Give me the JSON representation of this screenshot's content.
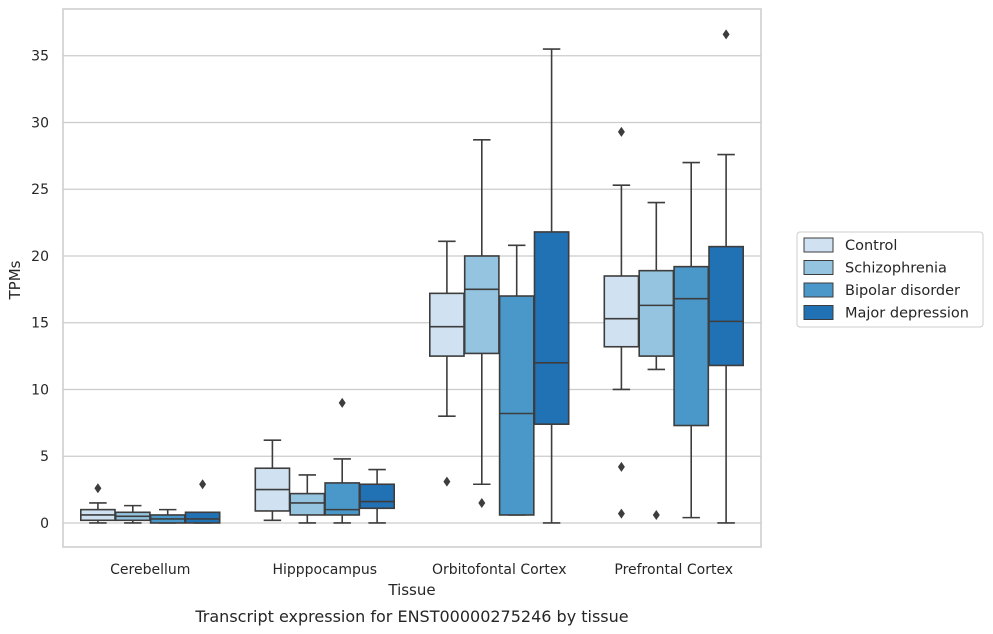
{
  "chart_data": {
    "type": "box",
    "caption": "Transcript expression for ENST00000275246 by tissue",
    "xlabel": "Tissue",
    "ylabel": "TPMs",
    "ylim": [
      -1.8,
      38.5
    ],
    "yticks": [
      0,
      5,
      10,
      15,
      20,
      25,
      30,
      35
    ],
    "grid": "horizontal",
    "legend_position": "right",
    "categories": [
      "Cerebellum",
      "Hipppocampus",
      "Orbitofontal Cortex",
      "Prefrontal Cortex"
    ],
    "series": [
      {
        "name": "Control",
        "color": "#d0e1f2",
        "boxes": [
          {
            "whislo": 0.0,
            "q1": 0.2,
            "med": 0.6,
            "q3": 1.0,
            "whishi": 1.5,
            "fliers": [
              2.6
            ]
          },
          {
            "whislo": 0.2,
            "q1": 0.9,
            "med": 2.5,
            "q3": 4.1,
            "whishi": 6.2,
            "fliers": []
          },
          {
            "whislo": 8.0,
            "q1": 12.5,
            "med": 14.7,
            "q3": 17.2,
            "whishi": 21.1,
            "fliers": [
              3.1
            ]
          },
          {
            "whislo": 10.0,
            "q1": 13.2,
            "med": 15.3,
            "q3": 18.5,
            "whishi": 25.3,
            "fliers": [
              29.3,
              4.2,
              0.7
            ]
          }
        ]
      },
      {
        "name": "Schizophrenia",
        "color": "#94c4df",
        "boxes": [
          {
            "whislo": 0.0,
            "q1": 0.2,
            "med": 0.5,
            "q3": 0.8,
            "whishi": 1.3,
            "fliers": []
          },
          {
            "whislo": 0.0,
            "q1": 0.6,
            "med": 1.5,
            "q3": 2.2,
            "whishi": 3.6,
            "fliers": []
          },
          {
            "whislo": 2.9,
            "q1": 12.7,
            "med": 17.5,
            "q3": 20.0,
            "whishi": 28.7,
            "fliers": [
              1.5
            ]
          },
          {
            "whislo": 11.5,
            "q1": 12.5,
            "med": 16.3,
            "q3": 18.9,
            "whishi": 24.0,
            "fliers": [
              0.6
            ]
          }
        ]
      },
      {
        "name": "Bipolar disorder",
        "color": "#4a98c9",
        "boxes": [
          {
            "whislo": 0.0,
            "q1": 0.0,
            "med": 0.3,
            "q3": 0.6,
            "whishi": 1.0,
            "fliers": []
          },
          {
            "whislo": 0.0,
            "q1": 0.6,
            "med": 1.0,
            "q3": 3.0,
            "whishi": 4.8,
            "fliers": [
              9.0
            ]
          },
          {
            "whislo": 0.6,
            "q1": 0.6,
            "med": 8.2,
            "q3": 17.0,
            "whishi": 20.8,
            "fliers": []
          },
          {
            "whislo": 0.4,
            "q1": 7.3,
            "med": 16.8,
            "q3": 19.2,
            "whishi": 27.0,
            "fliers": []
          }
        ]
      },
      {
        "name": "Major depression",
        "color": "#2171b5",
        "boxes": [
          {
            "whislo": 0.0,
            "q1": 0.0,
            "med": 0.3,
            "q3": 0.8,
            "whishi": 0.8,
            "fliers": [
              2.9
            ]
          },
          {
            "whislo": 0.0,
            "q1": 1.1,
            "med": 1.6,
            "q3": 2.9,
            "whishi": 4.0,
            "fliers": []
          },
          {
            "whislo": 0.0,
            "q1": 7.4,
            "med": 12.0,
            "q3": 21.8,
            "whishi": 35.5,
            "fliers": []
          },
          {
            "whislo": 0.0,
            "q1": 11.8,
            "med": 15.1,
            "q3": 20.7,
            "whishi": 27.6,
            "fliers": [
              36.6
            ]
          }
        ]
      }
    ]
  }
}
